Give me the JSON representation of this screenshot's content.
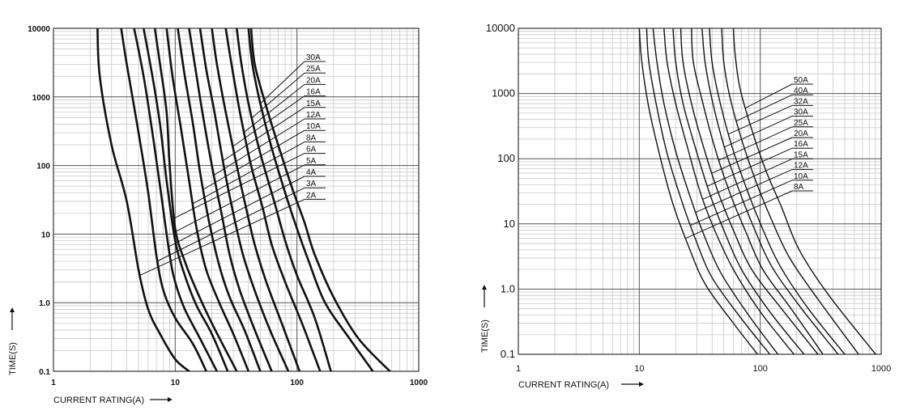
{
  "chart_data": [
    {
      "type": "line",
      "xscale": "log",
      "yscale": "log",
      "xlabel": "CURRENT RATING(A)",
      "ylabel": "TIME(S)",
      "xlim": [
        1,
        1000
      ],
      "ylim": [
        0.1,
        10000
      ],
      "x_ticks": [
        "1",
        "10",
        "100",
        "1000"
      ],
      "y_ticks": [
        "0.1",
        "1.0",
        "10",
        "100",
        "1000",
        "10000"
      ],
      "grid": true,
      "x_unit": "A",
      "y_unit": "s",
      "series": [
        {
          "name": "2A",
          "points": [
            [
              2.3,
              10000
            ],
            [
              2.4,
              2000
            ],
            [
              3,
              200
            ],
            [
              4,
              30
            ],
            [
              5,
              3
            ],
            [
              6,
              0.8
            ],
            [
              7.5,
              0.35
            ],
            [
              10,
              0.15
            ],
            [
              13,
              0.1
            ]
          ]
        },
        {
          "name": "3A",
          "points": [
            [
              3.6,
              10000
            ],
            [
              4,
              3000
            ],
            [
              5,
              300
            ],
            [
              6,
              40
            ],
            [
              7,
              5
            ],
            [
              8,
              1.5
            ],
            [
              10,
              0.6
            ],
            [
              14,
              0.25
            ],
            [
              18,
              0.1
            ]
          ]
        },
        {
          "name": "4A",
          "points": [
            [
              4.6,
              10000
            ],
            [
              5.5,
              2000
            ],
            [
              6.5,
              300
            ],
            [
              7.5,
              50
            ],
            [
              9,
              5
            ],
            [
              10,
              2
            ],
            [
              12,
              0.8
            ],
            [
              16,
              0.3
            ],
            [
              22,
              0.1
            ]
          ]
        },
        {
          "name": "5A",
          "points": [
            [
              5.5,
              10000
            ],
            [
              6.5,
              2000
            ],
            [
              7.5,
              400
            ],
            [
              8.5,
              60
            ],
            [
              10,
              8
            ],
            [
              12,
              2.5
            ],
            [
              15,
              0.9
            ],
            [
              20,
              0.35
            ],
            [
              27,
              0.1
            ]
          ]
        },
        {
          "name": "6A",
          "points": [
            [
              6.8,
              10000
            ],
            [
              7.5,
              3000
            ],
            [
              8.5,
              600
            ],
            [
              9,
              100
            ],
            [
              10,
              12
            ],
            [
              12,
              4
            ],
            [
              15,
              1.5
            ],
            [
              20,
              0.5
            ],
            [
              32,
              0.1
            ]
          ]
        },
        {
          "name": "8A",
          "points": [
            [
              8.5,
              10000
            ],
            [
              9.5,
              2000
            ],
            [
              11,
              400
            ],
            [
              13,
              60
            ],
            [
              15,
              12
            ],
            [
              18,
              3
            ],
            [
              23,
              1
            ],
            [
              30,
              0.35
            ],
            [
              40,
              0.1
            ]
          ]
        },
        {
          "name": "10A",
          "points": [
            [
              10.5,
              10000
            ],
            [
              12,
              2000
            ],
            [
              14,
              400
            ],
            [
              16,
              80
            ],
            [
              19,
              15
            ],
            [
              23,
              3.5
            ],
            [
              28,
              1.2
            ],
            [
              37,
              0.4
            ],
            [
              50,
              0.1
            ]
          ]
        },
        {
          "name": "12A",
          "points": [
            [
              13,
              10000
            ],
            [
              15,
              2000
            ],
            [
              17,
              500
            ],
            [
              20,
              100
            ],
            [
              24,
              20
            ],
            [
              28,
              5
            ],
            [
              34,
              1.5
            ],
            [
              45,
              0.4
            ],
            [
              62,
              0.1
            ]
          ]
        },
        {
          "name": "15A",
          "points": [
            [
              16,
              10000
            ],
            [
              18,
              2500
            ],
            [
              21,
              600
            ],
            [
              25,
              100
            ],
            [
              30,
              20
            ],
            [
              36,
              5
            ],
            [
              45,
              1.5
            ],
            [
              60,
              0.4
            ],
            [
              85,
              0.1
            ]
          ]
        },
        {
          "name": "16A",
          "points": [
            [
              20,
              10000
            ],
            [
              22,
              3000
            ],
            [
              26,
              600
            ],
            [
              32,
              100
            ],
            [
              38,
              25
            ],
            [
              45,
              7
            ],
            [
              56,
              2
            ],
            [
              75,
              0.5
            ],
            [
              105,
              0.1
            ]
          ]
        },
        {
          "name": "20A",
          "points": [
            [
              26,
              10000
            ],
            [
              29,
              3000
            ],
            [
              34,
              600
            ],
            [
              42,
              100
            ],
            [
              52,
              25
            ],
            [
              62,
              7
            ],
            [
              80,
              2
            ],
            [
              110,
              0.5
            ],
            [
              155,
              0.1
            ]
          ]
        },
        {
          "name": "25A",
          "points": [
            [
              32,
              10000
            ],
            [
              35,
              3000
            ],
            [
              40,
              800
            ],
            [
              50,
              150
            ],
            [
              65,
              30
            ],
            [
              80,
              8
            ],
            [
              100,
              2.5
            ],
            [
              140,
              0.6
            ],
            [
              190,
              0.1
            ]
          ]
        },
        {
          "name": "30A",
          "points": [
            [
              40,
              10000
            ],
            [
              43,
              3000
            ],
            [
              50,
              800
            ],
            [
              62,
              180
            ],
            [
              80,
              40
            ],
            [
              100,
              12
            ],
            [
              125,
              4
            ],
            [
              170,
              1
            ],
            [
              270,
              0.3
            ],
            [
              420,
              0.1
            ]
          ]
        },
        {
          "name": "",
          "points": [
            [
              42,
              10000
            ],
            [
              45,
              3000
            ],
            [
              55,
              800
            ],
            [
              70,
              200
            ],
            [
              92,
              45
            ],
            [
              115,
              15
            ],
            [
              140,
              5
            ],
            [
              200,
              1.2
            ],
            [
              320,
              0.3
            ],
            [
              580,
              0.1
            ]
          ]
        }
      ],
      "labels": [
        "30A",
        "25A",
        "20A",
        "16A",
        "15A",
        "12A",
        "10A",
        "8A",
        "6A",
        "5A",
        "4A",
        "3A",
        "2A"
      ]
    },
    {
      "type": "line",
      "xscale": "log",
      "yscale": "log",
      "xlabel": "CURRENT RATING(A)",
      "ylabel": "TIME(S)",
      "xlim": [
        1,
        1000
      ],
      "ylim": [
        0.1,
        10000
      ],
      "x_ticks": [
        "1",
        "10",
        "100",
        "1000"
      ],
      "y_ticks": [
        "0.1",
        "1.0",
        "10",
        "100",
        "1000",
        "10000"
      ],
      "grid": true,
      "x_unit": "A",
      "y_unit": "s",
      "series": [
        {
          "name": "8A",
          "points": [
            [
              10,
              10000
            ],
            [
              10.5,
              3000
            ],
            [
              12,
              600
            ],
            [
              15,
              100
            ],
            [
              19,
              20
            ],
            [
              25,
              5
            ],
            [
              35,
              1.2
            ],
            [
              60,
              0.3
            ],
            [
              95,
              0.1
            ]
          ]
        },
        {
          "name": "10A",
          "points": [
            [
              11.5,
              10000
            ],
            [
              12,
              3000
            ],
            [
              14,
              600
            ],
            [
              17,
              120
            ],
            [
              22,
              25
            ],
            [
              29,
              6
            ],
            [
              40,
              1.5
            ],
            [
              70,
              0.35
            ],
            [
              120,
              0.1
            ]
          ]
        },
        {
          "name": "12A",
          "points": [
            [
              13,
              10000
            ],
            [
              14,
              3000
            ],
            [
              16,
              700
            ],
            [
              20,
              130
            ],
            [
              26,
              28
            ],
            [
              34,
              7
            ],
            [
              47,
              1.8
            ],
            [
              80,
              0.4
            ],
            [
              140,
              0.1
            ]
          ]
        },
        {
          "name": "15A",
          "points": [
            [
              16,
              10000
            ],
            [
              17,
              3000
            ],
            [
              20,
              700
            ],
            [
              25,
              150
            ],
            [
              32,
              30
            ],
            [
              42,
              8
            ],
            [
              60,
              2
            ],
            [
              100,
              0.45
            ],
            [
              190,
              0.1
            ]
          ]
        },
        {
          "name": "16A",
          "points": [
            [
              19,
              10000
            ],
            [
              20,
              3000
            ],
            [
              23,
              700
            ],
            [
              29,
              150
            ],
            [
              38,
              30
            ],
            [
              50,
              8
            ],
            [
              70,
              2
            ],
            [
              120,
              0.45
            ],
            [
              230,
              0.1
            ]
          ]
        },
        {
          "name": "20A",
          "points": [
            [
              22,
              10000
            ],
            [
              23,
              3000
            ],
            [
              27,
              700
            ],
            [
              34,
              150
            ],
            [
              45,
              30
            ],
            [
              60,
              8
            ],
            [
              85,
              2
            ],
            [
              150,
              0.5
            ],
            [
              300,
              0.1
            ]
          ]
        },
        {
          "name": "25A",
          "points": [
            [
              27,
              10000
            ],
            [
              28,
              3000
            ],
            [
              33,
              800
            ],
            [
              42,
              150
            ],
            [
              56,
              30
            ],
            [
              75,
              8
            ],
            [
              105,
              2
            ],
            [
              180,
              0.5
            ],
            [
              330,
              0.1
            ]
          ]
        },
        {
          "name": "30A",
          "points": [
            [
              33,
              10000
            ],
            [
              35,
              3000
            ],
            [
              40,
              800
            ],
            [
              50,
              160
            ],
            [
              66,
              35
            ],
            [
              88,
              9
            ],
            [
              125,
              2.2
            ],
            [
              220,
              0.5
            ],
            [
              440,
              0.1
            ]
          ]
        },
        {
          "name": "32A",
          "points": [
            [
              38,
              10000
            ],
            [
              40,
              3000
            ],
            [
              46,
              800
            ],
            [
              58,
              160
            ],
            [
              77,
              35
            ],
            [
              103,
              9
            ],
            [
              145,
              2.3
            ],
            [
              250,
              0.5
            ],
            [
              500,
              0.1
            ]
          ]
        },
        {
          "name": "40A",
          "points": [
            [
              48,
              10000
            ],
            [
              50,
              3000
            ],
            [
              56,
              900
            ],
            [
              70,
              200
            ],
            [
              92,
              45
            ],
            [
              123,
              12
            ],
            [
              175,
              3
            ],
            [
              300,
              0.7
            ],
            [
              650,
              0.1
            ]
          ]
        },
        {
          "name": "50A",
          "points": [
            [
              60,
              10000
            ],
            [
              62,
              4000
            ],
            [
              68,
              1200
            ],
            [
              84,
              300
            ],
            [
              110,
              70
            ],
            [
              150,
              18
            ],
            [
              210,
              4
            ],
            [
              370,
              0.8
            ],
            [
              900,
              0.1
            ]
          ]
        }
      ],
      "labels": [
        "50A",
        "40A",
        "32A",
        "30A",
        "25A",
        "20A",
        "16A",
        "15A",
        "12A",
        "10A",
        "8A"
      ]
    }
  ]
}
